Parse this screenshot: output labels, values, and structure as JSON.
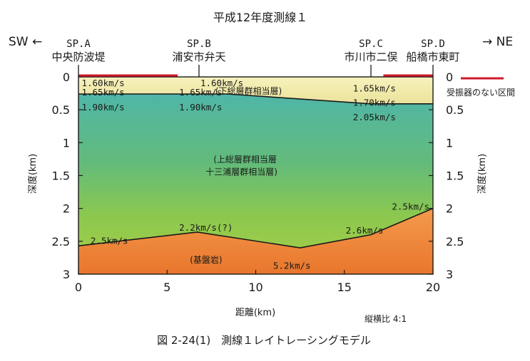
{
  "title": "平成12年度測線１",
  "caption": "図 2-24(1)　測線１レイトレーシングモデル",
  "direction": {
    "left": "SW ←",
    "right": "→ NE"
  },
  "shotpoints": [
    {
      "id": "SP.A",
      "name": "中央防波堤",
      "x_km": 0
    },
    {
      "id": "SP.B",
      "name": "浦安市弁天",
      "x_km": 6.8
    },
    {
      "id": "SP.C",
      "name": "市川市二俣",
      "x_km": 16.5
    },
    {
      "id": "SP.D",
      "name": "船橋市東町",
      "x_km": 20
    }
  ],
  "legend": {
    "no_receiver": "受振器のない区間",
    "color": "#d0182a"
  },
  "scale_note": "縦横比 4:1",
  "chart_data": {
    "type": "area",
    "title": "平成12年度測線１",
    "xlabel": "距離(km)",
    "ylabel": "深度(km)",
    "xlim": [
      0,
      20
    ],
    "ylim": [
      0,
      3
    ],
    "y_inverted": true,
    "x_ticks": [
      0,
      5,
      10,
      15,
      20
    ],
    "y_ticks": [
      "0",
      "0.5",
      "1",
      "1.5",
      "2",
      "2.5",
      "3"
    ],
    "y_tick_values": [
      0,
      0.5,
      1,
      1.5,
      2,
      2.5,
      3
    ],
    "no_receiver_segments": [
      [
        0,
        5.6
      ],
      [
        17.2,
        20
      ]
    ],
    "layers": [
      {
        "name": "(下総層群相当層)",
        "color": "#f2ecaa",
        "top": {
          "x": [
            0,
            20
          ],
          "y": [
            0,
            0
          ]
        },
        "bottom": {
          "x": [
            0,
            8.4,
            16.5,
            20
          ],
          "y": [
            0.26,
            0.26,
            0.41,
            0.41
          ]
        }
      },
      {
        "name": "(上総層群相当層\n十三浦層群相当層)",
        "color": "#6fbf7c",
        "top": {
          "x": [
            0,
            8.4,
            16.5,
            20
          ],
          "y": [
            0.26,
            0.26,
            0.41,
            0.41
          ]
        },
        "bottom": {
          "x": [
            0,
            6.7,
            12.5,
            16.5,
            20
          ],
          "y": [
            2.57,
            2.36,
            2.6,
            2.4,
            2.0
          ]
        }
      },
      {
        "name": "(基盤岩)",
        "color": "#ee8a42",
        "top": {
          "x": [
            0,
            6.7,
            12.5,
            16.5,
            20
          ],
          "y": [
            2.57,
            2.36,
            2.6,
            2.4,
            2.0
          ]
        },
        "bottom": {
          "x": [
            0,
            20
          ],
          "y": [
            3,
            3
          ]
        }
      }
    ],
    "velocity_labels": [
      {
        "text": "1.60km/s",
        "x": 0.1,
        "y": 0.0
      },
      {
        "text": "1.60km/s",
        "x": 6.8,
        "y": 0.0
      },
      {
        "text": "1.65km/s",
        "x": 0.1,
        "y": 0.14
      },
      {
        "text": "1.65km/s",
        "x": 5.6,
        "y": 0.14
      },
      {
        "text": "1.65km/s",
        "x": 15.4,
        "y": 0.08
      },
      {
        "text": "1.70km/s",
        "x": 15.4,
        "y": 0.3
      },
      {
        "text": "1.90km/s",
        "x": 0.1,
        "y": 0.37
      },
      {
        "text": "1.90km/s",
        "x": 5.6,
        "y": 0.37
      },
      {
        "text": "2.05km/s",
        "x": 15.4,
        "y": 0.52
      },
      {
        "text": "2.5km/s",
        "x": 0.6,
        "y": 2.4
      },
      {
        "text": "2.2km/s(?)",
        "x": 5.6,
        "y": 2.2
      },
      {
        "text": "2.6km/s",
        "x": 15.0,
        "y": 2.24
      },
      {
        "text": "2.5km/s",
        "x": 17.6,
        "y": 1.88
      },
      {
        "text": "5.2km/s",
        "x": 10.9,
        "y": 2.78
      }
    ],
    "zone_labels": [
      {
        "text": "(下総層群相当層)",
        "x": 9.6,
        "y": 0.14
      },
      {
        "text": "(上総層群相当層",
        "x": 9.4,
        "y": 1.18
      },
      {
        "text": "十三浦層群相当層)",
        "x": 9.2,
        "y": 1.37
      },
      {
        "text": "(基盤岩)",
        "x": 7.2,
        "y": 2.71
      }
    ]
  }
}
